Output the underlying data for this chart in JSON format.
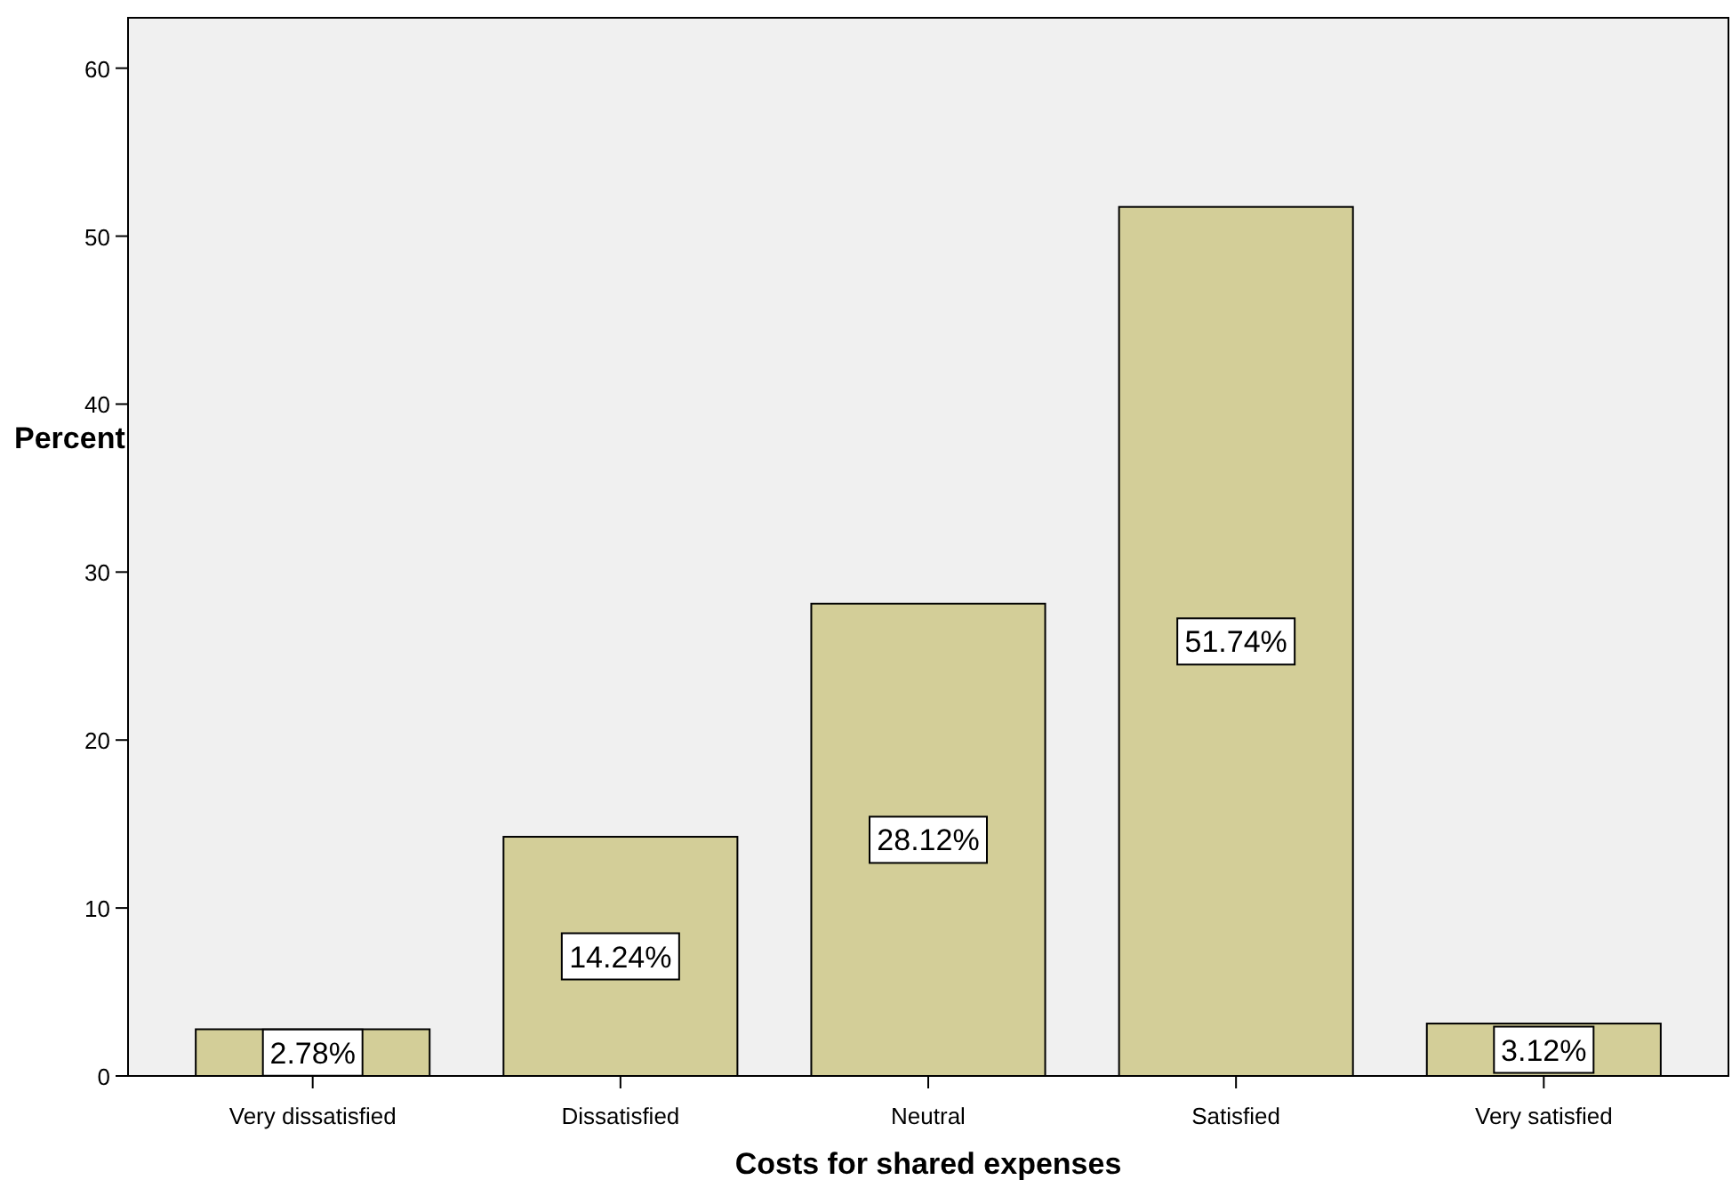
{
  "chart_data": {
    "type": "bar",
    "xlabel": "Costs for shared expenses",
    "ylabel": "Percent",
    "categories": [
      "Very dissatisfied",
      "Dissatisfied",
      "Neutral",
      "Satisfied",
      "Very satisfied"
    ],
    "values": [
      2.78,
      14.24,
      28.12,
      51.74,
      3.12
    ],
    "value_labels": [
      "2.78%",
      "14.24%",
      "28.12%",
      "51.74%",
      "3.12%"
    ],
    "color": "#d3ce98",
    "ylim": [
      0,
      63
    ],
    "yticks": [
      0,
      10,
      20,
      30,
      40,
      50,
      60
    ],
    "grid": false
  }
}
